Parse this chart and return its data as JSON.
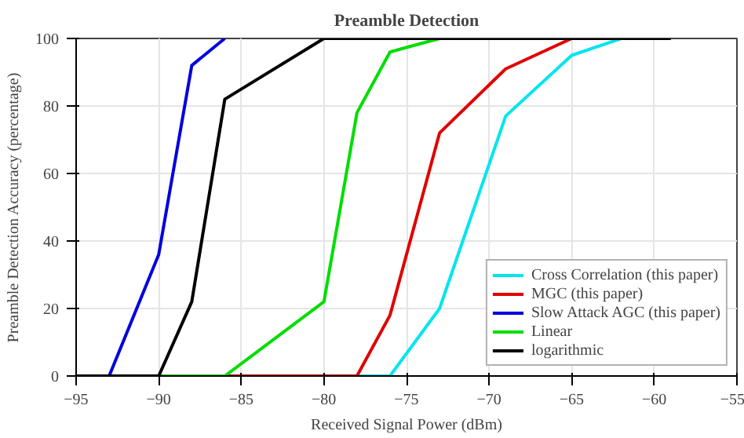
{
  "chart_data": {
    "type": "line",
    "title": "Preamble Detection",
    "xlabel": "Received Signal Power (dBm)",
    "ylabel": "Preamble Detection Accuracy (percentage)",
    "xlim": [
      -95,
      -55
    ],
    "xticks": [
      -95,
      -90,
      -85,
      -80,
      -75,
      -70,
      -65,
      -60,
      -55
    ],
    "ylim": [
      0,
      100
    ],
    "yticks": [
      0,
      20,
      40,
      60,
      80,
      100
    ],
    "grid": true,
    "legend": "bottom right",
    "marker": "none",
    "line_style": "solid",
    "series": [
      {
        "name": "Cross Correlation (this paper)",
        "color": "#00e5ee",
        "x": [
          -95,
          -76,
          -73,
          -69,
          -65,
          -62
        ],
        "values": [
          0,
          0,
          20,
          77,
          95,
          100
        ]
      },
      {
        "name": "MGC (this paper)",
        "color": "#e00000",
        "x": [
          -95,
          -78,
          -76,
          -73,
          -69,
          -65
        ],
        "values": [
          0,
          0,
          18,
          72,
          91,
          100
        ]
      },
      {
        "name": "Slow Attack AGC (this paper)",
        "color": "#0000dd",
        "x": [
          -95,
          -93,
          -90,
          -88,
          -86
        ],
        "values": [
          0,
          0,
          36,
          92,
          100
        ]
      },
      {
        "name": "Linear",
        "color": "#00dd00",
        "x": [
          -95,
          -86,
          -80,
          -78,
          -76,
          -73
        ],
        "values": [
          0,
          0,
          22,
          78,
          96,
          100
        ]
      },
      {
        "name": "logarithmic",
        "color": "#000000",
        "x": [
          -95,
          -90,
          -88,
          -86,
          -80,
          -59
        ],
        "values": [
          0,
          0,
          22,
          82,
          100,
          100
        ]
      }
    ]
  }
}
